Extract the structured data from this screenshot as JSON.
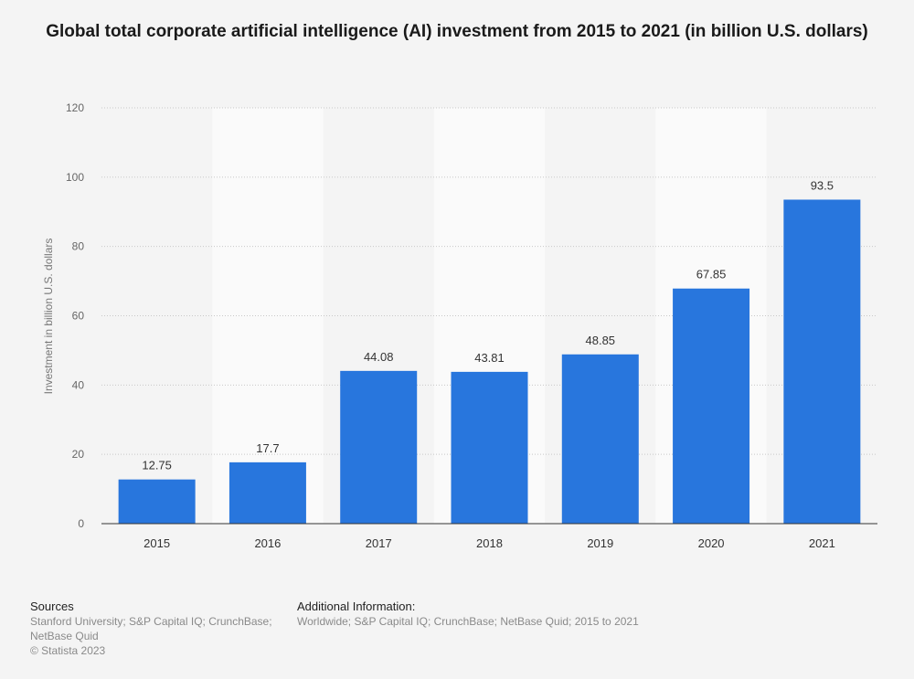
{
  "chart_data": {
    "type": "bar",
    "title": "Global total corporate artificial intelligence (AI) investment from 2015 to 2021 (in billion U.S. dollars)",
    "ylabel": "Investment in billion U.S. dollars",
    "xlabel": "",
    "categories": [
      "2015",
      "2016",
      "2017",
      "2018",
      "2019",
      "2020",
      "2021"
    ],
    "values": [
      12.75,
      17.7,
      44.08,
      43.81,
      48.85,
      67.85,
      93.5
    ],
    "data_labels": [
      "12.75",
      "17.7",
      "44.08",
      "43.81",
      "48.85",
      "67.85",
      "93.5"
    ],
    "ylim": [
      0,
      120
    ],
    "yticks": [
      0,
      20,
      40,
      60,
      80,
      100,
      120
    ],
    "grid": true,
    "bar_color": "#2876dd"
  },
  "footer": {
    "sources_title": "Sources",
    "sources_lines": [
      "Stanford University; S&P Capital IQ; CrunchBase;",
      "NetBase Quid",
      "© Statista 2023"
    ],
    "info_title": "Additional Information:",
    "info_lines": [
      "Worldwide; S&P Capital IQ; CrunchBase; NetBase Quid; 2015 to 2021"
    ]
  }
}
